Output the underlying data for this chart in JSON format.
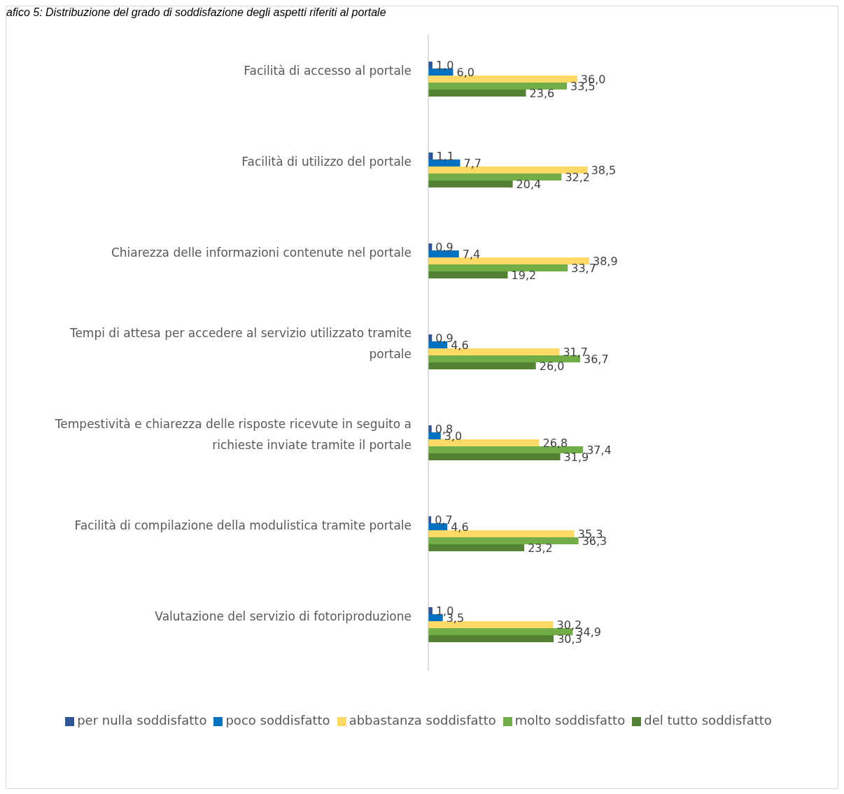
{
  "chart_data": {
    "type": "bar",
    "orientation": "horizontal",
    "title": "afico 5: Distribuzione del grado di soddisfazione degli aspetti riferiti al portale",
    "categories": [
      "Facilità di accesso al portale",
      "Facilità di utilizzo del portale",
      "Chiarezza delle informazioni contenute nel portale",
      "Tempi di attesa per accedere al servizio utilizzato tramite portale",
      "Tempestività e chiarezza delle risposte ricevute in seguito a richieste inviate tramite il portale",
      "Facilità di compilazione della modulistica tramite portale",
      "Valutazione del servizio di fotoriproduzione"
    ],
    "series": [
      {
        "name": "per nulla soddisfatto",
        "color": "#2f5597",
        "values": [
          1.0,
          1.1,
          0.9,
          0.9,
          0.8,
          0.7,
          1.0
        ],
        "value_labels": [
          "1,0",
          "1,1",
          "0,9",
          "0,9",
          "0,8",
          "0,7",
          "1,0"
        ]
      },
      {
        "name": "poco soddisfatto",
        "color": "#0070c0",
        "values": [
          6.0,
          7.7,
          7.4,
          4.6,
          3.0,
          4.6,
          3.5
        ],
        "value_labels": [
          "6,0",
          "7,7",
          "7,4",
          "4,6",
          "3,0",
          "4,6",
          "3,5"
        ]
      },
      {
        "name": "abbastanza soddisfatto",
        "color": "#ffd966",
        "values": [
          36.0,
          38.5,
          38.9,
          31.7,
          26.8,
          35.3,
          30.2
        ],
        "value_labels": [
          "36,0",
          "38,5",
          "38,9",
          "31,7",
          "26,8",
          "35,3",
          "30,2"
        ]
      },
      {
        "name": "molto soddisfatto",
        "color": "#70ad47",
        "values": [
          33.5,
          32.2,
          33.7,
          36.7,
          37.4,
          36.3,
          34.9
        ],
        "value_labels": [
          "33,5",
          "32,2",
          "33,7",
          "36,7",
          "37,4",
          "36,3",
          "34,9"
        ]
      },
      {
        "name": "del tutto soddisfatto",
        "color": "#548235",
        "values": [
          23.6,
          20.4,
          19.2,
          26.0,
          31.9,
          23.2,
          30.3
        ],
        "value_labels": [
          "23,6",
          "20,4",
          "19,2",
          "26,0",
          "31,9",
          "23,2",
          "30,3"
        ]
      }
    ],
    "legend": "bottom",
    "grid": false
  }
}
